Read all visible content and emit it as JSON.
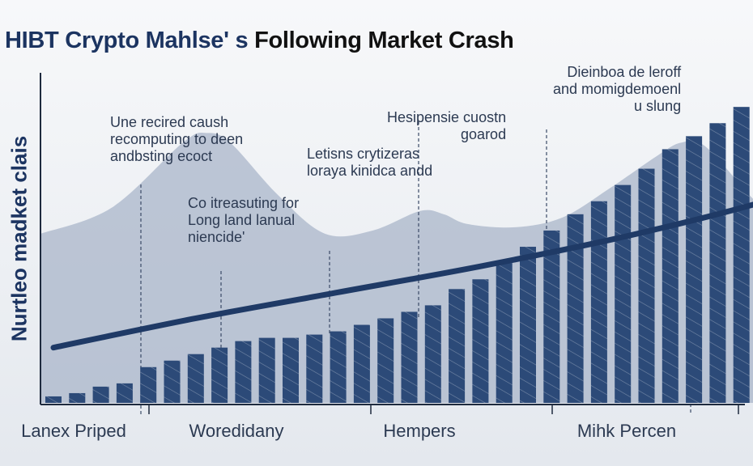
{
  "title": {
    "part1": "HIBT Crypto Mahlse' s",
    "part2": "Following Market Crash"
  },
  "colors": {
    "bar": "#2c4a78",
    "area": "#a9b6c9",
    "trend": "#1f3a66"
  },
  "chart_data": {
    "type": "bar",
    "title": "HIBT Crypto Mahlse' s Following Market Crash",
    "ylabel": "Nurtleo madket clais",
    "xlabel": "",
    "ylim": [
      0,
      100
    ],
    "xticks": [
      "Lanex Priped",
      "Woredidany",
      "Hempers",
      "Mihk Percen"
    ],
    "bars": [
      2,
      3,
      5,
      6,
      11,
      13,
      15,
      17,
      19,
      20,
      20,
      21,
      22,
      24,
      26,
      28,
      30,
      35,
      38,
      43,
      48,
      53,
      58,
      62,
      67,
      72,
      78,
      82,
      86,
      91,
      97
    ],
    "area": [
      [
        0,
        52
      ],
      [
        3,
        60
      ],
      [
        6,
        80
      ],
      [
        7,
        83
      ],
      [
        8,
        80
      ],
      [
        10,
        64
      ],
      [
        12,
        52
      ],
      [
        14,
        53
      ],
      [
        16,
        59
      ],
      [
        17,
        58
      ],
      [
        18,
        55
      ],
      [
        20,
        54
      ],
      [
        22,
        57
      ],
      [
        24,
        66
      ],
      [
        26,
        76
      ],
      [
        27,
        80
      ],
      [
        28,
        79
      ],
      [
        30,
        63
      ],
      [
        31,
        57
      ],
      [
        32,
        66
      ],
      [
        33,
        74
      ],
      [
        34,
        79
      ],
      [
        35,
        80
      ],
      [
        36,
        76
      ],
      [
        37,
        72
      ],
      [
        39,
        67
      ],
      [
        40,
        60
      ],
      [
        41,
        55
      ],
      [
        42,
        53
      ]
    ],
    "trend": [
      [
        0,
        17
      ],
      [
        6,
        26
      ],
      [
        12,
        34
      ],
      [
        18,
        42
      ],
      [
        24,
        51
      ],
      [
        30,
        62
      ],
      [
        34,
        72
      ],
      [
        37,
        82
      ],
      [
        39.6,
        92
      ]
    ],
    "annotations": [
      "Une recired caush\nrecomputing to deen\nandbsting ecoct",
      "Co itreasuting for\nLong land lanual\nniencide'",
      "Letisns crytizeras\nloraya kinidca andd",
      "Hesipensie cuostn\ngoarod",
      "Dieinboa de leroff\nand momigdemoenl\nu slung"
    ]
  }
}
